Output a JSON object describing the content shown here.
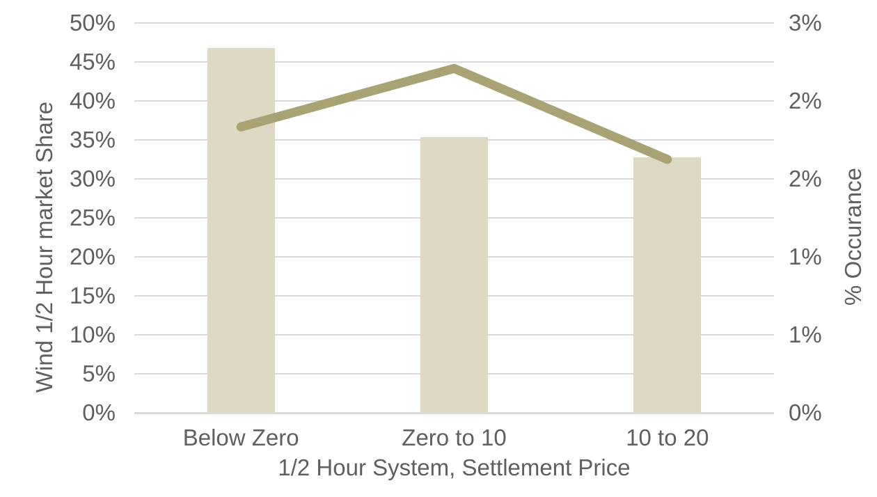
{
  "chart_data": {
    "type": "bar",
    "subtype": "bar-line-combo",
    "categories": [
      "Below Zero",
      "Zero to 10",
      "10 to 20"
    ],
    "series": [
      {
        "name": "Wind 1/2 Hour market Share",
        "type": "bar",
        "axis": "left",
        "values": [
          46.8,
          35.4,
          32.8
        ]
      },
      {
        "name": "% Occurance",
        "type": "line",
        "axis": "right",
        "values": [
          2.2,
          2.65,
          1.95
        ]
      }
    ],
    "title": "",
    "xlabel": "1/2 Hour System, Settlement Price",
    "ylabel": "Wind 1/2 Hour market Share",
    "y2label": "% Occurance",
    "ylim": [
      0,
      50
    ],
    "y2lim": [
      0,
      3
    ],
    "yticks": [
      "0%",
      "5%",
      "10%",
      "15%",
      "20%",
      "25%",
      "30%",
      "35%",
      "40%",
      "45%",
      "50%"
    ],
    "y2ticks": [
      "0%",
      "1%",
      "1%",
      "2%",
      "2%",
      "3%"
    ],
    "grid": true,
    "legend": "none",
    "colors": {
      "bar_fill": "#DED9C5",
      "line": "#A9A273",
      "gridline": "#D9D9D9",
      "axis_line": "#D9D9D9",
      "text": "#5F5F5F",
      "background": "#FFFFFF"
    }
  }
}
